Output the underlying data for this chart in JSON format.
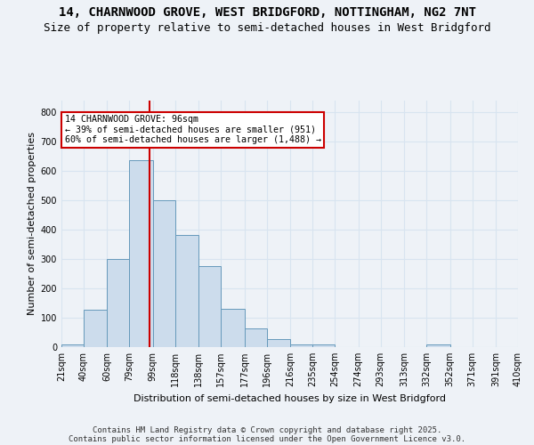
{
  "title1": "14, CHARNWOOD GROVE, WEST BRIDGFORD, NOTTINGHAM, NG2 7NT",
  "title2": "Size of property relative to semi-detached houses in West Bridgford",
  "xlabel": "Distribution of semi-detached houses by size in West Bridgford",
  "ylabel": "Number of semi-detached properties",
  "bin_edges": [
    21,
    40,
    60,
    79,
    99,
    118,
    138,
    157,
    177,
    196,
    216,
    235,
    254,
    274,
    293,
    313,
    332,
    352,
    371,
    391,
    410
  ],
  "bar_heights": [
    10,
    128,
    300,
    635,
    500,
    380,
    275,
    130,
    65,
    28,
    10,
    10,
    0,
    0,
    0,
    0,
    10,
    0,
    0,
    0
  ],
  "bar_color": "#ccdcec",
  "bar_edge_color": "#6699bb",
  "property_size": 96,
  "vline_color": "#cc0000",
  "annotation_title": "14 CHARNWOOD GROVE: 96sqm",
  "annotation_line1": "← 39% of semi-detached houses are smaller (951)",
  "annotation_line2": "60% of semi-detached houses are larger (1,488) →",
  "annotation_box_color": "#ffffff",
  "annotation_box_edge": "#cc0000",
  "ylim": [
    0,
    840
  ],
  "yticks": [
    0,
    100,
    200,
    300,
    400,
    500,
    600,
    700,
    800
  ],
  "footer1": "Contains HM Land Registry data © Crown copyright and database right 2025.",
  "footer2": "Contains public sector information licensed under the Open Government Licence v3.0.",
  "bg_color": "#eef2f7",
  "grid_color": "#d8e4f0",
  "title_fontsize": 10,
  "subtitle_fontsize": 9,
  "ylabel_fontsize": 8,
  "xlabel_fontsize": 8,
  "tick_fontsize": 7,
  "footer_fontsize": 6.5
}
